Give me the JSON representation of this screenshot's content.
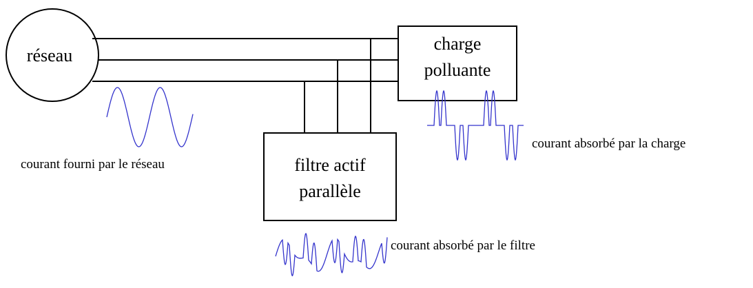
{
  "source": {
    "label": "réseau"
  },
  "load": {
    "label_lines": [
      "charge",
      "polluante"
    ]
  },
  "filter": {
    "label_lines": [
      "filtre actif",
      "parallèle"
    ]
  },
  "captions": {
    "source_current": "courant fourni par le réseau",
    "load_current": "courant absorbé par la charge",
    "filter_current": "courant absorbé par le filtre"
  }
}
